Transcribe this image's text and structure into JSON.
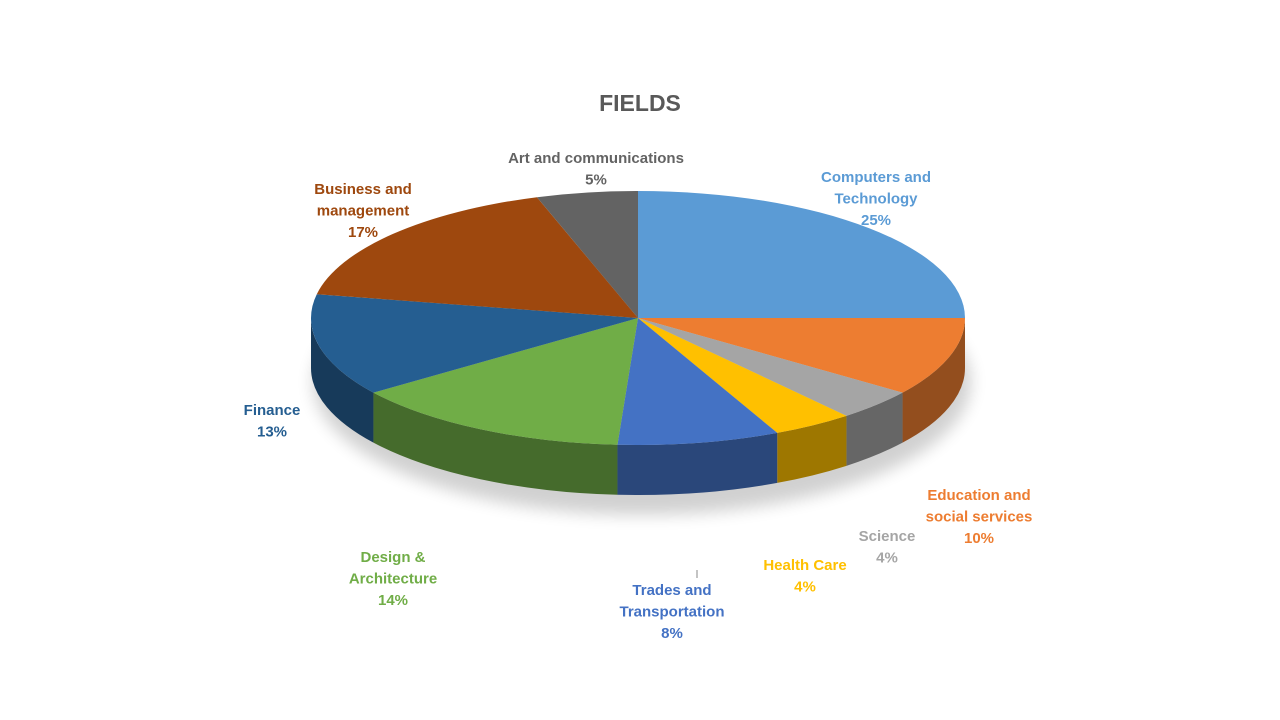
{
  "chart_data": {
    "type": "pie",
    "title": "FIELDS",
    "slices": [
      {
        "label": [
          "Computers and",
          "Technology"
        ],
        "pct": "25%",
        "value": 25,
        "color": "#5B9BD5"
      },
      {
        "label": [
          "Education and",
          "social services"
        ],
        "pct": "10%",
        "value": 10,
        "color": "#ED7D31"
      },
      {
        "label": [
          "Science"
        ],
        "pct": "4%",
        "value": 4,
        "color": "#A5A5A5"
      },
      {
        "label": [
          "Health Care"
        ],
        "pct": "4%",
        "value": 4,
        "color": "#FFC000"
      },
      {
        "label": [
          "Trades and",
          "Transportation"
        ],
        "pct": "8%",
        "value": 8,
        "color": "#4472C4"
      },
      {
        "label": [
          "Design &",
          "Architecture"
        ],
        "pct": "14%",
        "value": 14,
        "color": "#70AD47"
      },
      {
        "label": [
          "Finance"
        ],
        "pct": "13%",
        "value": 13,
        "color": "#255E91"
      },
      {
        "label": [
          "Business and",
          "management"
        ],
        "pct": "17%",
        "value": 17,
        "color": "#9E480E"
      },
      {
        "label": [
          "Art and communications"
        ],
        "pct": "5%",
        "value": 5,
        "color": "#636363"
      }
    ]
  }
}
